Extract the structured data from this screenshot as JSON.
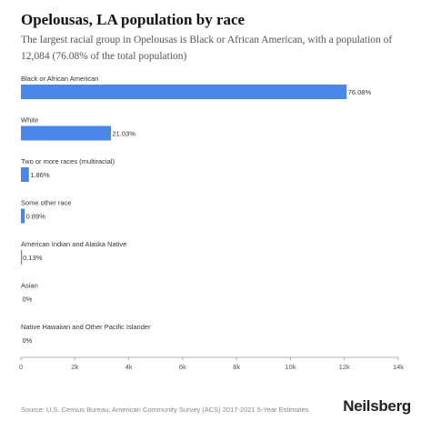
{
  "header": {
    "title": "Opelousas, LA population by race",
    "subtitle": "The largest racial group in Opelousas is Black or African American, with a population of 12,084 (76.08% of the total population)"
  },
  "footer": {
    "source": "Source: U.S. Census Bureau, American Community Survey (ACS) 2017-2021 5-Year Estimates",
    "brand": "Neilsberg"
  },
  "colors": {
    "bar": "#4a87e8",
    "axis": "#999999",
    "text": "#333333"
  },
  "chart_data": {
    "type": "bar",
    "orientation": "horizontal",
    "categories": [
      "Black or African American",
      "White",
      "Two or more races (multiracial)",
      "Some other race",
      "American Indian and Alaska Native",
      "Asian",
      "Native Hawaiian and Other Pacific Islander"
    ],
    "values": [
      12084,
      3340,
      296,
      141,
      21,
      0,
      0
    ],
    "data_labels": [
      "76.08%",
      "21.03%",
      "1.86%",
      "0.89%",
      "0.13%",
      "0%",
      "0%"
    ],
    "xlim": [
      0,
      14000
    ],
    "xticks": [
      0,
      2000,
      4000,
      6000,
      8000,
      10000,
      12000,
      14000
    ],
    "xtick_labels": [
      "0",
      "2k",
      "4k",
      "6k",
      "8k",
      "10k",
      "12k",
      "14k"
    ],
    "grid": false,
    "legend": "none"
  }
}
